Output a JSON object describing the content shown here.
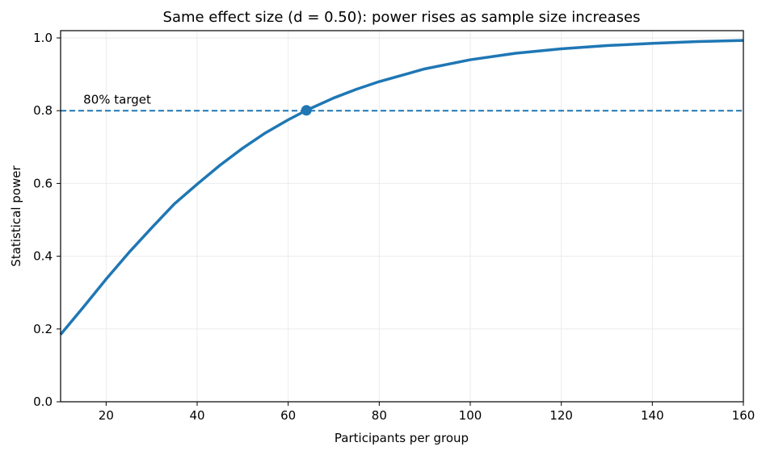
{
  "chart_data": {
    "type": "line",
    "title": "Same effect size (d = 0.50): power rises as sample size increases",
    "xlabel": "Participants per group",
    "ylabel": "Statistical power",
    "xlim": [
      10,
      160
    ],
    "ylim": [
      0.0,
      1.02
    ],
    "xticks": [
      "20",
      "40",
      "60",
      "80",
      "100",
      "120",
      "140",
      "160"
    ],
    "yticks": [
      "0.0",
      "0.2",
      "0.4",
      "0.6",
      "0.8",
      "1.0"
    ],
    "grid": true,
    "series": [
      {
        "color": "#1f77b4",
        "x": [
          10,
          15,
          20,
          25,
          30,
          35,
          40,
          45,
          50,
          55,
          60,
          64,
          70,
          75,
          80,
          90,
          100,
          110,
          120,
          130,
          140,
          150,
          160
        ],
        "y": [
          0.185,
          0.26,
          0.337,
          0.41,
          0.478,
          0.544,
          0.598,
          0.65,
          0.697,
          0.739,
          0.775,
          0.801,
          0.835,
          0.859,
          0.88,
          0.915,
          0.94,
          0.958,
          0.97,
          0.979,
          0.985,
          0.99,
          0.993
        ]
      }
    ],
    "reference_line": {
      "y": 0.8,
      "style": "dashed",
      "color": "#1f77b4"
    },
    "highlight_point": {
      "x": 64,
      "y": 0.801,
      "color": "#1f77b4"
    },
    "annotation": {
      "text": "80% target",
      "x": 15,
      "y": 0.83
    }
  }
}
